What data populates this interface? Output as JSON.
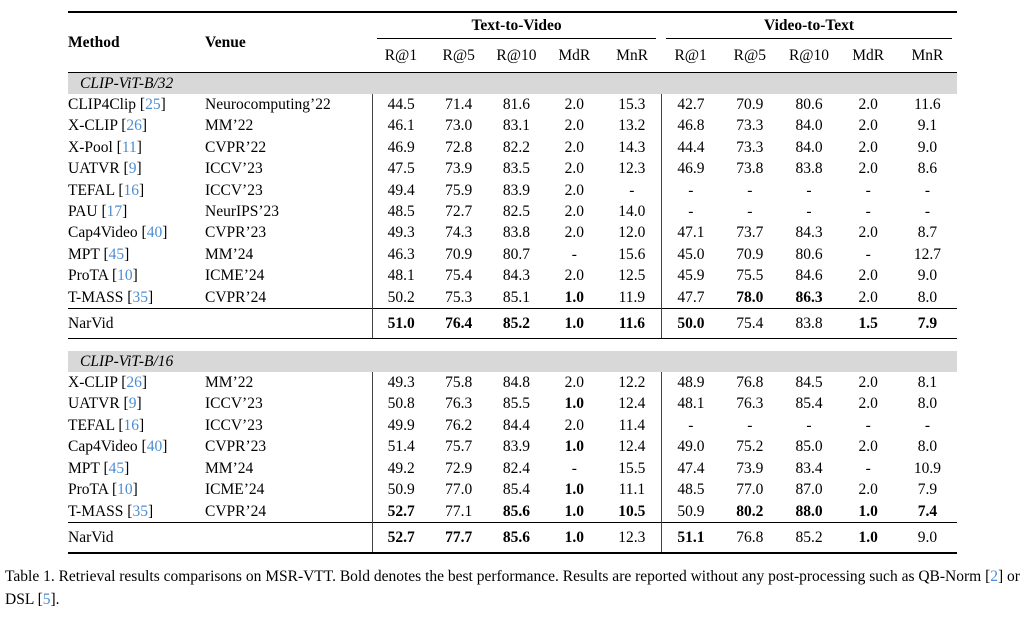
{
  "colors": {
    "citation_blue": "#4c8dd2",
    "section_bar_gray": "#d8d8d8",
    "rule_black": "#000000"
  },
  "table": {
    "columns": {
      "method": "Method",
      "venue": "Venue"
    },
    "groups": [
      {
        "label": "Text-to-Video",
        "metrics": [
          "R@1",
          "R@5",
          "R@10",
          "MdR",
          "MnR"
        ]
      },
      {
        "label": "Video-to-Text",
        "metrics": [
          "R@1",
          "R@5",
          "R@10",
          "MdR",
          "MnR"
        ]
      }
    ],
    "sections": [
      {
        "label": "CLIP-ViT-B/32",
        "rows": [
          {
            "method": "CLIP4Clip",
            "cite": "25",
            "venue": "Neurocomputing’22",
            "t2v": [
              "44.5",
              "71.4",
              "81.6",
              "2.0",
              "15.3"
            ],
            "v2t": [
              "42.7",
              "70.9",
              "80.6",
              "2.0",
              "11.6"
            ]
          },
          {
            "method": "X-CLIP",
            "cite": "26",
            "venue": "MM’22",
            "t2v": [
              "46.1",
              "73.0",
              "83.1",
              "2.0",
              "13.2"
            ],
            "v2t": [
              "46.8",
              "73.3",
              "84.0",
              "2.0",
              "9.1"
            ]
          },
          {
            "method": "X-Pool",
            "cite": "11",
            "venue": "CVPR’22",
            "t2v": [
              "46.9",
              "72.8",
              "82.2",
              "2.0",
              "14.3"
            ],
            "v2t": [
              "44.4",
              "73.3",
              "84.0",
              "2.0",
              "9.0"
            ]
          },
          {
            "method": "UATVR",
            "cite": "9",
            "venue": "ICCV’23",
            "t2v": [
              "47.5",
              "73.9",
              "83.5",
              "2.0",
              "12.3"
            ],
            "v2t": [
              "46.9",
              "73.8",
              "83.8",
              "2.0",
              "8.6"
            ]
          },
          {
            "method": "TEFAL",
            "cite": "16",
            "venue": "ICCV’23",
            "t2v": [
              "49.4",
              "75.9",
              "83.9",
              "2.0",
              "-"
            ],
            "v2t": [
              "-",
              "-",
              "-",
              "-",
              "-"
            ]
          },
          {
            "method": "PAU",
            "cite": "17",
            "venue": "NeurIPS’23",
            "t2v": [
              "48.5",
              "72.7",
              "82.5",
              "2.0",
              "14.0"
            ],
            "v2t": [
              "-",
              "-",
              "-",
              "-",
              "-"
            ]
          },
          {
            "method": "Cap4Video",
            "cite": "40",
            "venue": "CVPR’23",
            "t2v": [
              "49.3",
              "74.3",
              "83.8",
              "2.0",
              "12.0"
            ],
            "v2t": [
              "47.1",
              "73.7",
              "84.3",
              "2.0",
              "8.7"
            ]
          },
          {
            "method": "MPT",
            "cite": "45",
            "venue": "MM’24",
            "t2v": [
              "46.3",
              "70.9",
              "80.7",
              "-",
              "15.6"
            ],
            "v2t": [
              "45.0",
              "70.9",
              "80.6",
              "-",
              "12.7"
            ]
          },
          {
            "method": "ProTA",
            "cite": "10",
            "venue": "ICME’24",
            "t2v": [
              "48.1",
              "75.4",
              "84.3",
              "2.0",
              "12.5"
            ],
            "v2t": [
              "45.9",
              "75.5",
              "84.6",
              "2.0",
              "9.0"
            ]
          },
          {
            "method": "T-MASS",
            "cite": "35",
            "venue": "CVPR’24",
            "t2v": [
              "50.2",
              "75.3",
              "85.1",
              {
                "v": "1.0",
                "bold": true
              },
              "11.9"
            ],
            "v2t": [
              "47.7",
              {
                "v": "78.0",
                "bold": true
              },
              {
                "v": "86.3",
                "bold": true
              },
              "2.0",
              "8.0"
            ]
          }
        ],
        "final_row": {
          "method": "NarVid",
          "t2v": [
            {
              "v": "51.0",
              "bold": true
            },
            {
              "v": "76.4",
              "bold": true
            },
            {
              "v": "85.2",
              "bold": true
            },
            {
              "v": "1.0",
              "bold": true
            },
            {
              "v": "11.6",
              "bold": true
            }
          ],
          "v2t": [
            {
              "v": "50.0",
              "bold": true
            },
            "75.4",
            "83.8",
            {
              "v": "1.5",
              "bold": true
            },
            {
              "v": "7.9",
              "bold": true
            }
          ]
        }
      },
      {
        "label": "CLIP-ViT-B/16",
        "rows": [
          {
            "method": "X-CLIP",
            "cite": "26",
            "venue": "MM’22",
            "t2v": [
              "49.3",
              "75.8",
              "84.8",
              "2.0",
              "12.2"
            ],
            "v2t": [
              "48.9",
              "76.8",
              "84.5",
              "2.0",
              "8.1"
            ]
          },
          {
            "method": "UATVR",
            "cite": "9",
            "venue": "ICCV’23",
            "t2v": [
              "50.8",
              "76.3",
              "85.5",
              {
                "v": "1.0",
                "bold": true
              },
              "12.4"
            ],
            "v2t": [
              "48.1",
              "76.3",
              "85.4",
              "2.0",
              "8.0"
            ]
          },
          {
            "method": "TEFAL",
            "cite": "16",
            "venue": "ICCV’23",
            "t2v": [
              "49.9",
              "76.2",
              "84.4",
              "2.0",
              "11.4"
            ],
            "v2t": [
              "-",
              "-",
              "-",
              "-",
              "-"
            ]
          },
          {
            "method": "Cap4Video",
            "cite": "40",
            "venue": "CVPR’23",
            "t2v": [
              "51.4",
              "75.7",
              "83.9",
              {
                "v": "1.0",
                "bold": true
              },
              "12.4"
            ],
            "v2t": [
              "49.0",
              "75.2",
              "85.0",
              "2.0",
              "8.0"
            ]
          },
          {
            "method": "MPT",
            "cite": "45",
            "venue": "MM’24",
            "t2v": [
              "49.2",
              "72.9",
              "82.4",
              "-",
              "15.5"
            ],
            "v2t": [
              "47.4",
              "73.9",
              "83.4",
              "-",
              "10.9"
            ]
          },
          {
            "method": "ProTA",
            "cite": "10",
            "venue": "ICME’24",
            "t2v": [
              "50.9",
              "77.0",
              "85.4",
              {
                "v": "1.0",
                "bold": true
              },
              "11.1"
            ],
            "v2t": [
              "48.5",
              "77.0",
              "87.0",
              "2.0",
              "7.9"
            ]
          },
          {
            "method": "T-MASS",
            "cite": "35",
            "venue": "CVPR’24",
            "t2v": [
              {
                "v": "52.7",
                "bold": true
              },
              "77.1",
              {
                "v": "85.6",
                "bold": true
              },
              {
                "v": "1.0",
                "bold": true
              },
              {
                "v": "10.5",
                "bold": true
              }
            ],
            "v2t": [
              "50.9",
              {
                "v": "80.2",
                "bold": true
              },
              {
                "v": "88.0",
                "bold": true
              },
              {
                "v": "1.0",
                "bold": true
              },
              {
                "v": "7.4",
                "bold": true
              }
            ]
          }
        ],
        "final_row": {
          "method": "NarVid",
          "t2v": [
            {
              "v": "52.7",
              "bold": true
            },
            {
              "v": "77.7",
              "bold": true
            },
            {
              "v": "85.6",
              "bold": true
            },
            {
              "v": "1.0",
              "bold": true
            },
            "12.3"
          ],
          "v2t": [
            {
              "v": "51.1",
              "bold": true
            },
            "76.8",
            "85.2",
            {
              "v": "1.0",
              "bold": true
            },
            "9.0"
          ]
        }
      }
    ]
  },
  "caption": {
    "segments": [
      {
        "text": "Table 1. Retrieval results comparisons on MSR-VTT. Bold denotes the best performance. Results are reported without any post-processing such as QB-Norm ["
      },
      {
        "text": "2",
        "cite": true
      },
      {
        "text": "] or DSL ["
      },
      {
        "text": "5",
        "cite": true
      },
      {
        "text": "]."
      }
    ]
  }
}
